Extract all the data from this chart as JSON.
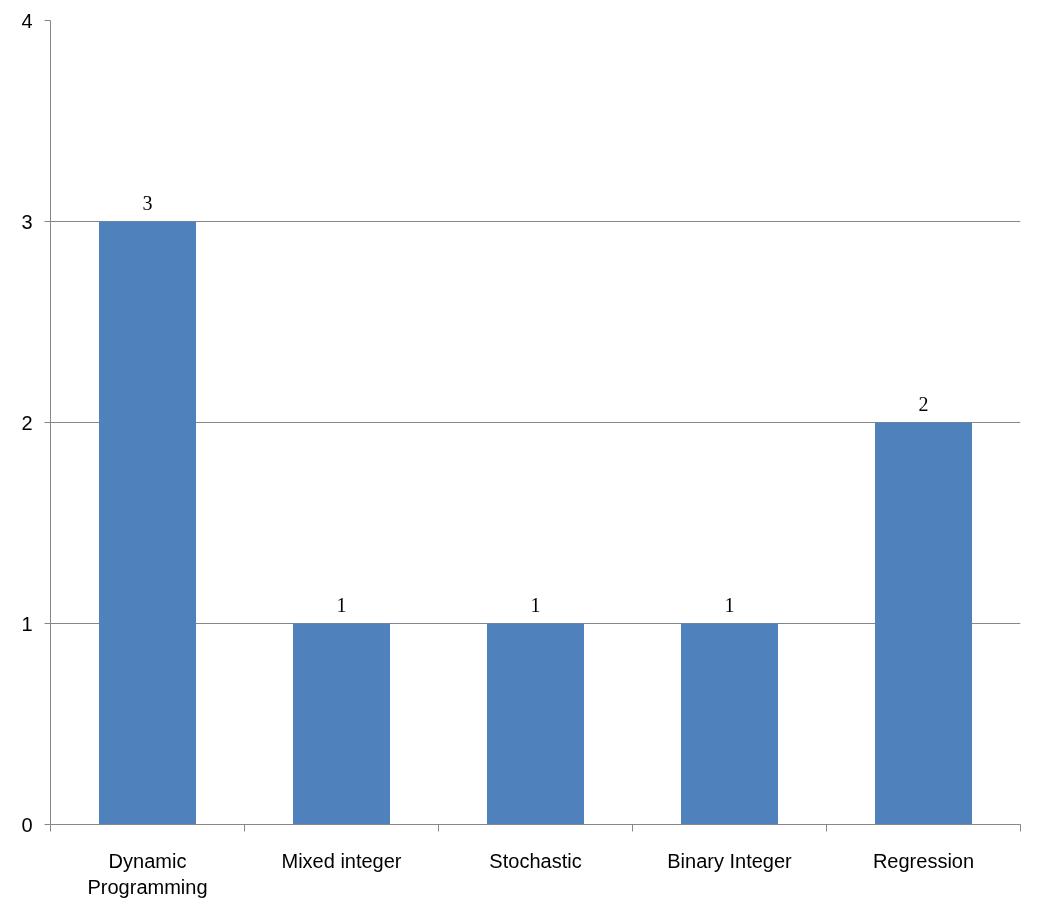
{
  "chart_data": {
    "type": "bar",
    "categories": [
      "Dynamic Programming",
      "Mixed integer",
      "Stochastic",
      "Binary Integer",
      "Regression"
    ],
    "values": [
      3,
      1,
      1,
      1,
      2
    ],
    "color": "#4f81bd",
    "ylim": [
      0,
      4
    ],
    "yticks": [
      0,
      1,
      2,
      3,
      4
    ],
    "grid": "y",
    "data_labels": true
  }
}
